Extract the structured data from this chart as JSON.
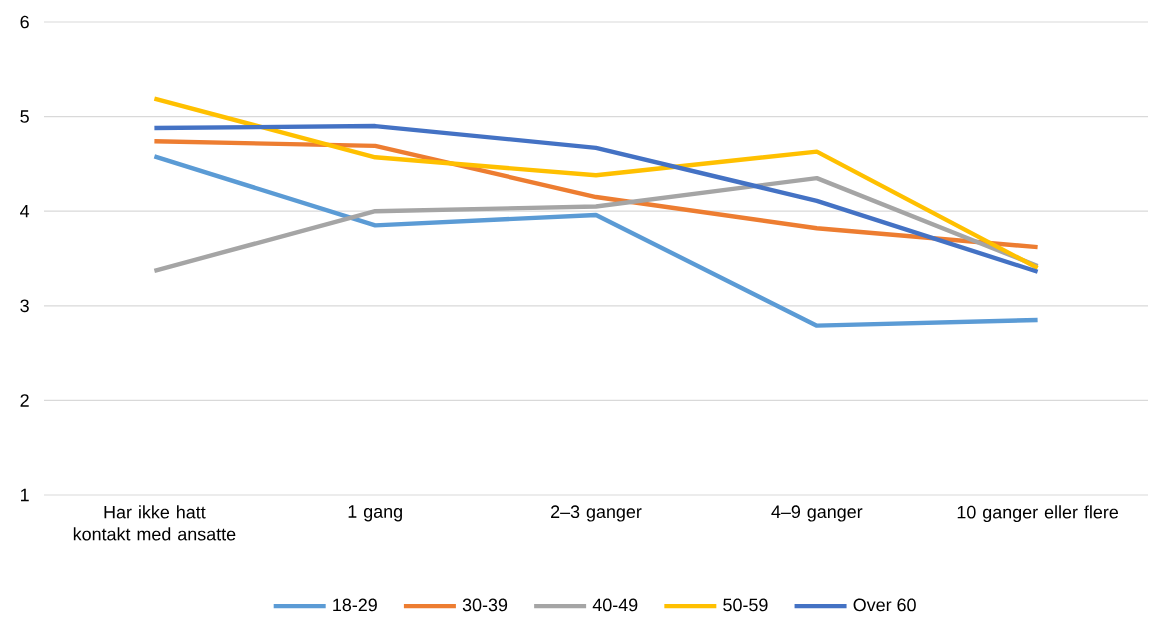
{
  "chart_data": {
    "type": "line",
    "categories": [
      "Har ikke hatt kontakt med ansatte",
      "1 gang",
      "2–3 ganger",
      "4–9 ganger",
      "10 ganger eller flere"
    ],
    "series": [
      {
        "name": "18-29",
        "color": "#5b9bd5",
        "values": [
          4.58,
          3.85,
          3.96,
          2.79,
          2.85
        ]
      },
      {
        "name": "30-39",
        "color": "#ed7d31",
        "values": [
          4.74,
          4.69,
          4.15,
          3.82,
          3.62
        ]
      },
      {
        "name": "40-49",
        "color": "#a5a5a5",
        "values": [
          3.37,
          4.0,
          4.05,
          4.35,
          3.42
        ]
      },
      {
        "name": "50-59",
        "color": "#ffc000",
        "values": [
          5.19,
          4.57,
          4.38,
          4.63,
          3.4
        ]
      },
      {
        "name": "Over 60",
        "color": "#4472c4",
        "values": [
          4.88,
          4.9,
          4.67,
          4.11,
          3.36
        ]
      }
    ],
    "ylim": [
      1,
      6
    ],
    "yticks": [
      1,
      2,
      3,
      4,
      5,
      6
    ],
    "grid": "y",
    "legend": "bottom",
    "marker": "none",
    "line_style": "solid"
  }
}
